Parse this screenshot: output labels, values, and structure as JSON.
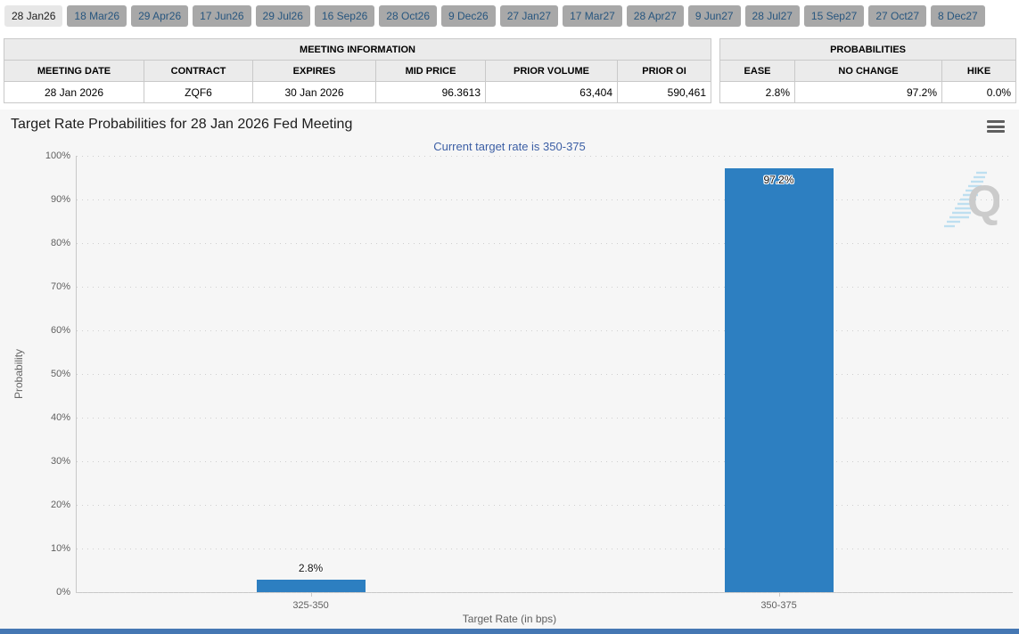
{
  "tabs": {
    "items": [
      {
        "label": "28 Jan26",
        "active": true
      },
      {
        "label": "18 Mar26",
        "active": false
      },
      {
        "label": "29 Apr26",
        "active": false
      },
      {
        "label": "17 Jun26",
        "active": false
      },
      {
        "label": "29 Jul26",
        "active": false
      },
      {
        "label": "16 Sep26",
        "active": false
      },
      {
        "label": "28 Oct26",
        "active": false
      },
      {
        "label": "9 Dec26",
        "active": false
      },
      {
        "label": "27 Jan27",
        "active": false
      },
      {
        "label": "17 Mar27",
        "active": false
      },
      {
        "label": "28 Apr27",
        "active": false
      },
      {
        "label": "9 Jun27",
        "active": false
      },
      {
        "label": "28 Jul27",
        "active": false
      },
      {
        "label": "15 Sep27",
        "active": false
      },
      {
        "label": "27 Oct27",
        "active": false
      },
      {
        "label": "8 Dec27",
        "active": false
      }
    ]
  },
  "meeting_info": {
    "title": "MEETING INFORMATION",
    "columns": [
      "MEETING DATE",
      "CONTRACT",
      "EXPIRES",
      "MID PRICE",
      "PRIOR VOLUME",
      "PRIOR OI"
    ],
    "row": [
      "28 Jan 2026",
      "ZQF6",
      "30 Jan 2026",
      "96.3613",
      "63,404",
      "590,461"
    ]
  },
  "probabilities": {
    "title": "PROBABILITIES",
    "columns": [
      "EASE",
      "NO CHANGE",
      "HIKE"
    ],
    "row": [
      "2.8%",
      "97.2%",
      "0.0%"
    ]
  },
  "chart": {
    "menu_icon": "hamburger-menu-icon",
    "watermark_letter": "Q"
  },
  "chart_data": {
    "type": "bar",
    "title": "Target Rate Probabilities for 28 Jan 2026 Fed Meeting",
    "subtitle": "Current target rate is 350-375",
    "categories": [
      "325-350",
      "350-375"
    ],
    "values": [
      2.8,
      97.2
    ],
    "data_labels": [
      "2.8%",
      "97.2%"
    ],
    "xlabel": "Target Rate (in bps)",
    "ylabel": "Probability",
    "ylim": [
      0,
      100
    ],
    "ytick_step": 10,
    "ytick_suffix": "%",
    "grid": "dotted",
    "legend": "none",
    "bar_color": "#2d7fc1"
  },
  "colors": {
    "bar": "#2d7fc1",
    "subtitle_text": "#3c5fa5",
    "chart_background": "#f6f6f6",
    "tab_active_bg": "#e7e7e7",
    "tab_inactive_bg": "#a8a8a8",
    "tab_inactive_text": "#27567f",
    "table_header_bg": "#ebebeb",
    "footer_strip": "#4577b3",
    "watermark_gray": "#c7c7c7",
    "watermark_stripe_blue": "#b9ddf0"
  }
}
